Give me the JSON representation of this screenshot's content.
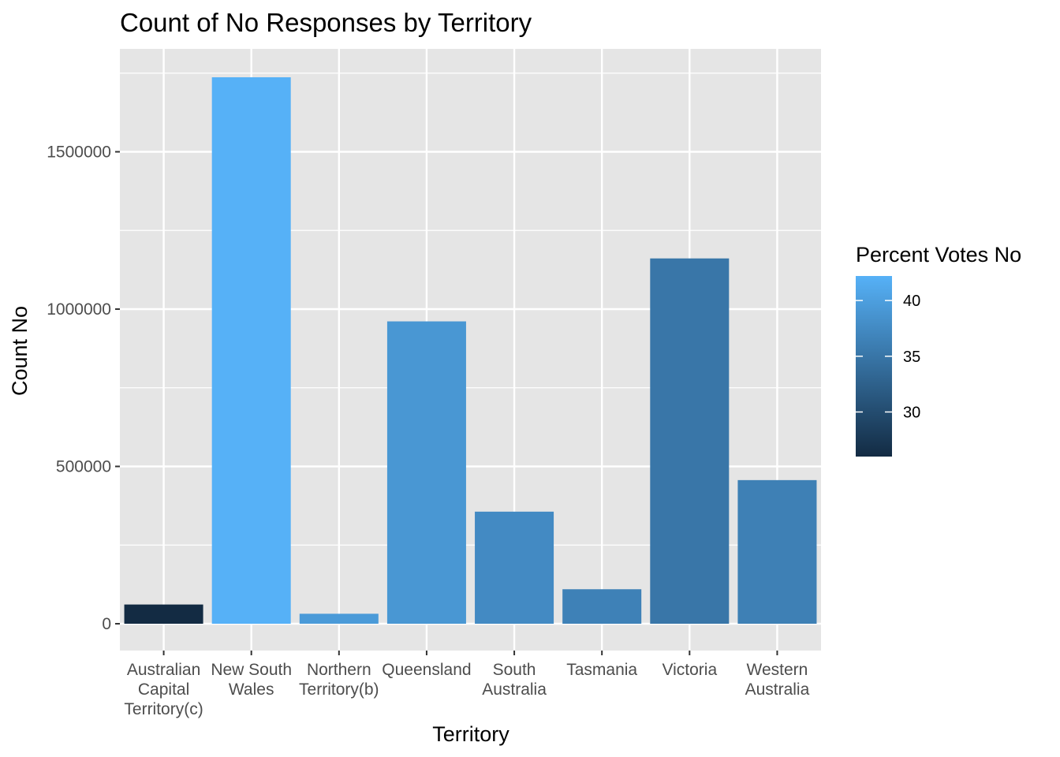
{
  "chart_data": {
    "type": "bar",
    "title": "Count of No Responses by Territory",
    "xlabel": "Territory",
    "ylabel": "Count No",
    "ylim": [
      -65000,
      1800000
    ],
    "yticks": [
      0,
      500000,
      1000000,
      1500000
    ],
    "ytick_labels": [
      "0",
      "500000",
      "1000000",
      "1500000"
    ],
    "categories": [
      [
        "Australian",
        "Capital",
        "Territory(c)"
      ],
      [
        "New South",
        "Wales"
      ],
      [
        "Northern",
        "Territory(b)"
      ],
      [
        "Queensland"
      ],
      [
        "South",
        "Australia"
      ],
      [
        "Tasmania"
      ],
      [
        "Victoria"
      ],
      [
        "Western",
        "Australia"
      ]
    ],
    "values": [
      61107,
      1736838,
      31690,
      961015,
      356247,
      109655,
      1161098,
      456494
    ],
    "fill_values": [
      26.0,
      42.2,
      39.4,
      39.0,
      37.5,
      36.4,
      35.1,
      36.3
    ],
    "legend": {
      "title": "Percent Votes No",
      "ticks": [
        30,
        35,
        40
      ],
      "range": [
        26.0,
        42.2
      ],
      "color_low": "#132B43",
      "color_high": "#56B1F7"
    },
    "grid": true,
    "panel_background": "#E5E5E5",
    "grid_color": "#FFFFFF"
  }
}
